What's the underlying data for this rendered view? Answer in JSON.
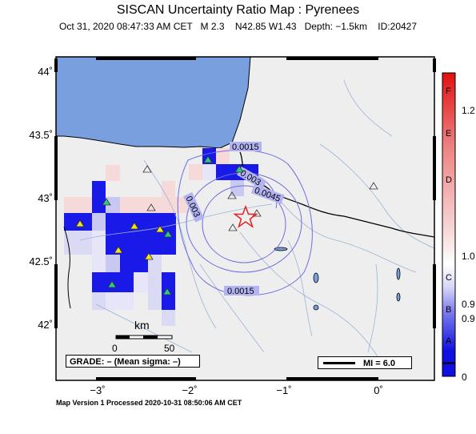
{
  "title": "SISCAN Uncertainty Ratio Map : Pyrenees",
  "subtitle": "Oct 31, 2020 08:47:33 AM CET   M 2.3    N42.85 W1.43   Depth: −1.5km    ID:20427",
  "footer": "Map Version 1 Processed 2020-10-31 08:50:06 AM CET",
  "axes": {
    "y_ticks": [
      "44˚",
      "43.5˚",
      "43˚",
      "42.5˚",
      "42˚"
    ],
    "x_ticks": [
      "−3˚",
      "−2˚",
      "−1˚",
      "0˚"
    ]
  },
  "contours": {
    "labels": [
      "0.0015",
      "0.003",
      "0.0045",
      "0.003",
      "0.0015"
    ]
  },
  "scale_bar": {
    "unit": "km",
    "start": "0",
    "end": "50"
  },
  "grade_text": "GRADE: – (Mean sigma: –)",
  "mi_text": "MI = 6.0",
  "colorbar": {
    "letters": [
      "F",
      "E",
      "D",
      "C",
      "B",
      "A"
    ],
    "values": [
      "1.2",
      "1.0",
      "0.9",
      "0.9",
      "0"
    ]
  },
  "colors": {
    "ocean": "#7a9fde",
    "land": "#eeeeee",
    "grid_high": "#1f1fe6",
    "epicenter": "#e32222",
    "station": "#2ec882",
    "station_alt": "#f2e41c"
  },
  "icons": {
    "epicenter": "star-icon",
    "station": "triangle-icon"
  }
}
